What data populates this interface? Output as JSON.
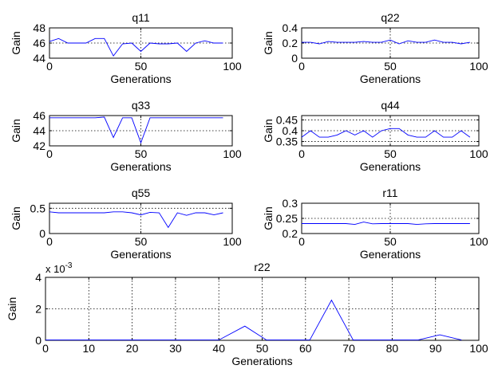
{
  "chart_data": [
    {
      "type": "line",
      "title": "q11",
      "xlabel": "Generations",
      "ylabel": "Gain",
      "xlim": [
        0,
        100
      ],
      "ylim": [
        44,
        48
      ],
      "xticks": [
        "0",
        "50",
        "100"
      ],
      "yticks": [
        "44",
        "46",
        "48"
      ],
      "grid": "dotted",
      "series": [
        {
          "x": [
            0,
            5,
            10,
            15,
            20,
            25,
            30,
            35,
            40,
            45,
            50,
            55,
            60,
            65,
            70,
            75,
            80,
            85,
            90,
            95
          ],
          "values": [
            46.2,
            46.6,
            46.0,
            46.0,
            46.0,
            46.6,
            46.6,
            44.3,
            45.9,
            46.0,
            44.9,
            46.0,
            45.9,
            45.9,
            46.0,
            44.9,
            46.0,
            46.3,
            46.0,
            46.0
          ]
        }
      ]
    },
    {
      "type": "line",
      "title": "q22",
      "xlabel": "Generations",
      "ylabel": "Gain",
      "xlim": [
        0,
        100
      ],
      "ylim": [
        0,
        0.4
      ],
      "xticks": [
        "0",
        "50",
        "100"
      ],
      "yticks": [
        "0",
        "0.2",
        "0.4"
      ],
      "grid": "dotted",
      "series": [
        {
          "x": [
            0,
            5,
            10,
            15,
            20,
            25,
            30,
            35,
            40,
            45,
            50,
            55,
            60,
            65,
            70,
            75,
            80,
            85,
            90,
            95
          ],
          "values": [
            0.21,
            0.21,
            0.19,
            0.22,
            0.21,
            0.21,
            0.21,
            0.22,
            0.21,
            0.21,
            0.24,
            0.19,
            0.23,
            0.21,
            0.21,
            0.24,
            0.21,
            0.21,
            0.19,
            0.21
          ]
        }
      ]
    },
    {
      "type": "line",
      "title": "q33",
      "xlabel": "Generations",
      "ylabel": "Gain",
      "xlim": [
        0,
        100
      ],
      "ylim": [
        42,
        46
      ],
      "xticks": [
        "0",
        "50",
        "100"
      ],
      "yticks": [
        "42",
        "44",
        "46"
      ],
      "grid": "dotted",
      "series": [
        {
          "x": [
            0,
            5,
            10,
            15,
            20,
            25,
            30,
            35,
            40,
            45,
            50,
            55,
            60,
            65,
            70,
            75,
            80,
            85,
            90,
            95
          ],
          "values": [
            45.7,
            45.7,
            45.7,
            45.7,
            45.7,
            45.7,
            45.8,
            43.1,
            45.7,
            45.7,
            42.4,
            45.7,
            45.7,
            45.7,
            45.7,
            45.7,
            45.7,
            45.7,
            45.7,
            45.7
          ]
        }
      ]
    },
    {
      "type": "line",
      "title": "q44",
      "xlabel": "Generations",
      "ylabel": "Gain",
      "xlim": [
        0,
        100
      ],
      "ylim": [
        0.33,
        0.47
      ],
      "xticks": [
        "0",
        "50",
        "100"
      ],
      "yticks": [
        "0.35",
        "0.4",
        "0.45"
      ],
      "grid": "dotted",
      "series": [
        {
          "x": [
            0,
            5,
            10,
            15,
            20,
            25,
            30,
            35,
            40,
            45,
            50,
            55,
            60,
            65,
            70,
            75,
            80,
            85,
            90,
            95
          ],
          "values": [
            0.37,
            0.4,
            0.37,
            0.37,
            0.38,
            0.4,
            0.38,
            0.4,
            0.37,
            0.4,
            0.41,
            0.41,
            0.38,
            0.37,
            0.37,
            0.4,
            0.37,
            0.37,
            0.4,
            0.37
          ]
        }
      ]
    },
    {
      "type": "line",
      "title": "q55",
      "xlabel": "Generations",
      "ylabel": "Gain",
      "xlim": [
        0,
        100
      ],
      "ylim": [
        0,
        0.6
      ],
      "xticks": [
        "0",
        "50",
        "100"
      ],
      "yticks": [
        "0",
        "0.5"
      ],
      "grid": "dotted",
      "series": [
        {
          "x": [
            0,
            5,
            10,
            15,
            20,
            25,
            30,
            35,
            40,
            45,
            50,
            55,
            60,
            65,
            70,
            75,
            80,
            85,
            90,
            95
          ],
          "values": [
            0.43,
            0.41,
            0.41,
            0.41,
            0.41,
            0.41,
            0.41,
            0.43,
            0.43,
            0.41,
            0.37,
            0.42,
            0.41,
            0.12,
            0.41,
            0.36,
            0.41,
            0.41,
            0.37,
            0.41
          ]
        }
      ]
    },
    {
      "type": "line",
      "title": "r11",
      "xlabel": "Generations",
      "ylabel": "Gain",
      "xlim": [
        0,
        100
      ],
      "ylim": [
        0.2,
        0.3
      ],
      "xticks": [
        "0",
        "50",
        "100"
      ],
      "yticks": [
        "0.2",
        "0.25",
        "0.3"
      ],
      "grid": "dotted",
      "series": [
        {
          "x": [
            0,
            5,
            10,
            15,
            20,
            25,
            30,
            35,
            40,
            45,
            50,
            55,
            60,
            65,
            70,
            75,
            80,
            85,
            90,
            95
          ],
          "values": [
            0.233,
            0.233,
            0.233,
            0.233,
            0.233,
            0.233,
            0.23,
            0.238,
            0.232,
            0.233,
            0.233,
            0.233,
            0.233,
            0.23,
            0.232,
            0.233,
            0.233,
            0.233,
            0.233,
            0.233
          ]
        }
      ]
    },
    {
      "type": "line",
      "title": "r22",
      "xlabel": "Generations",
      "ylabel": "Gain",
      "y_exponent_base": "x 10",
      "y_exponent_power": "-3",
      "xlim": [
        0,
        100
      ],
      "ylim": [
        0,
        4
      ],
      "xticks": [
        "0",
        "10",
        "20",
        "30",
        "40",
        "50",
        "60",
        "70",
        "80",
        "90",
        "100"
      ],
      "yticks": [
        "0",
        "2",
        "4"
      ],
      "grid": "dotted",
      "series": [
        {
          "x": [
            0,
            5,
            10,
            15,
            20,
            25,
            30,
            35,
            40,
            46,
            51,
            56,
            61,
            66,
            71,
            76,
            81,
            86,
            91,
            96
          ],
          "values": [
            0.02,
            0.02,
            0.02,
            0.02,
            0.02,
            0.02,
            0.02,
            0.02,
            0.02,
            0.9,
            0.02,
            0.02,
            0.02,
            2.55,
            0.02,
            0.02,
            0.02,
            0.02,
            0.35,
            0.02
          ]
        }
      ]
    }
  ]
}
